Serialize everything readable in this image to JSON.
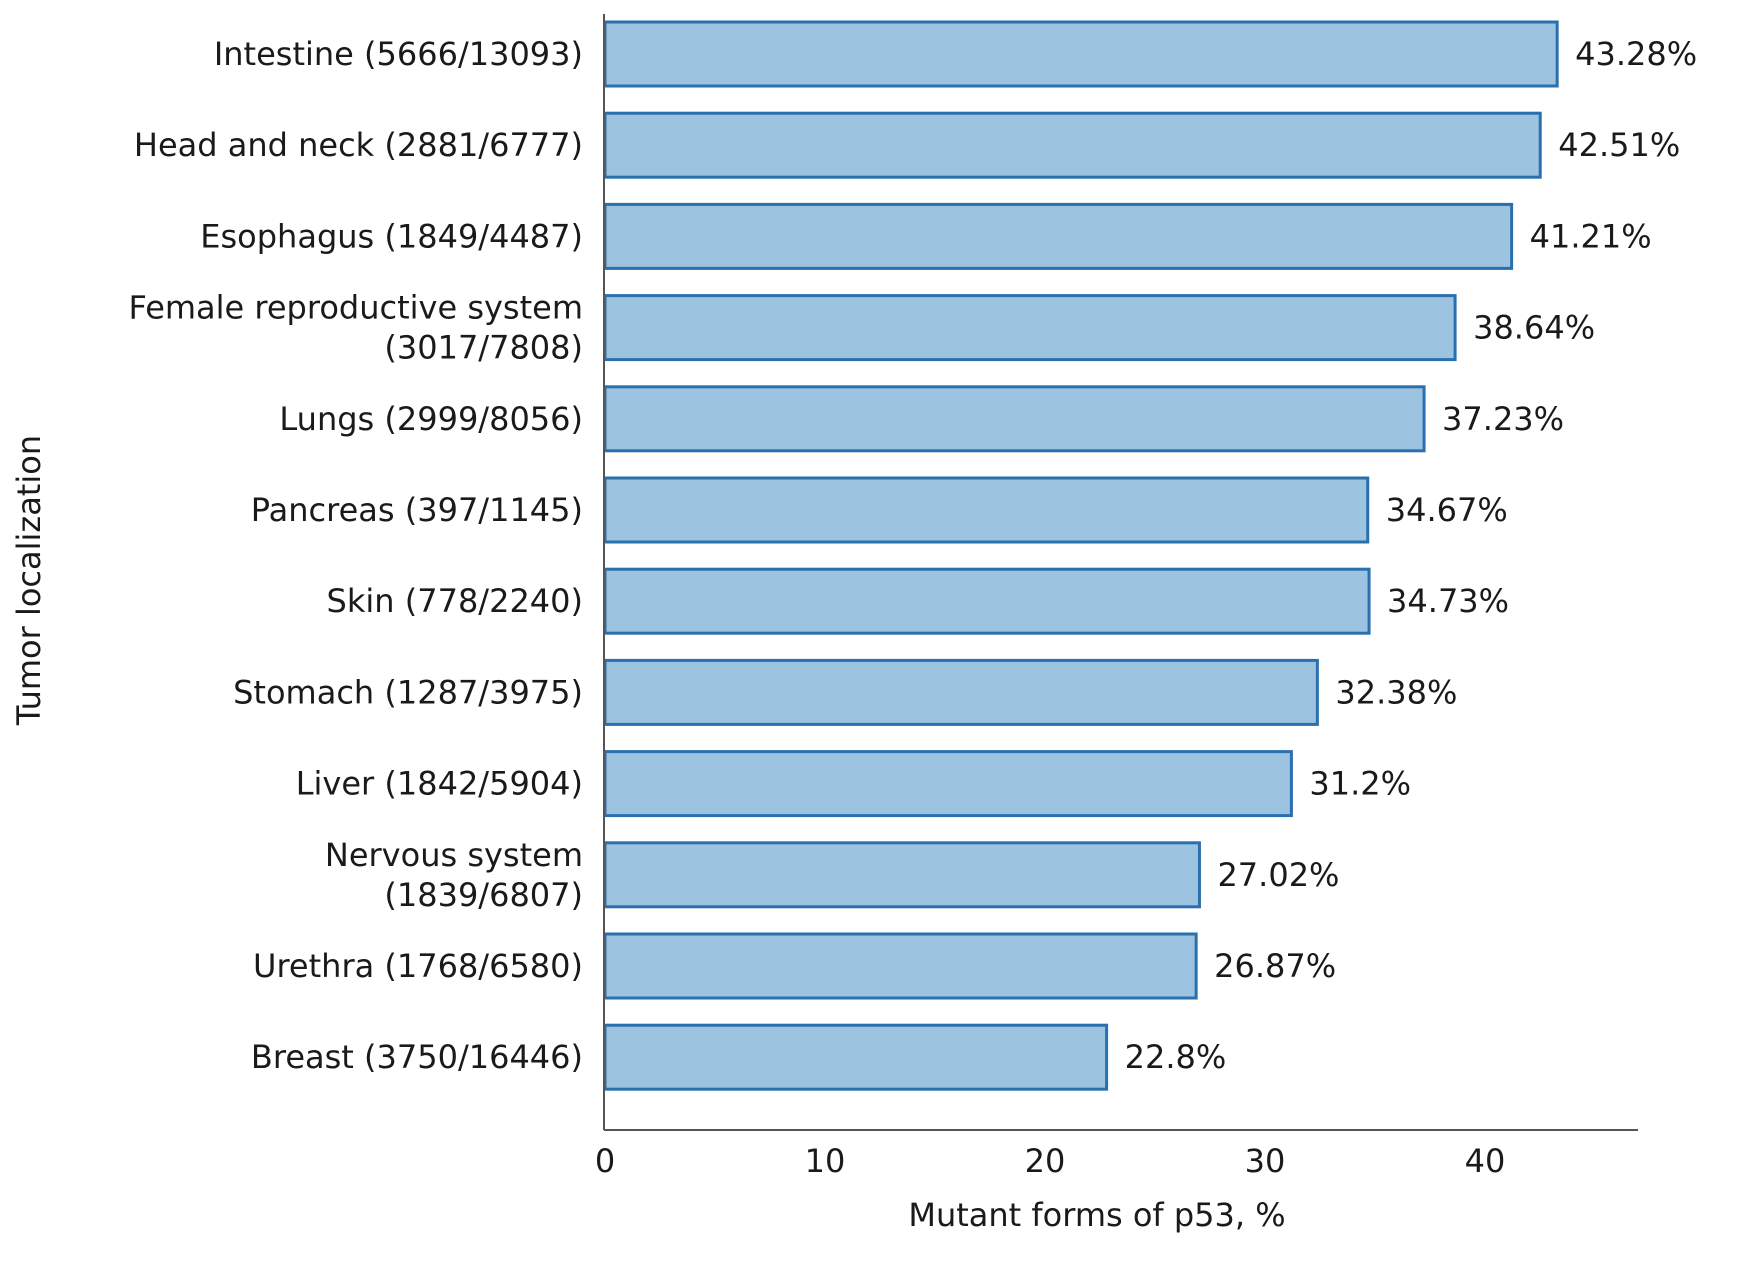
{
  "chart_data": {
    "type": "bar",
    "orientation": "horizontal",
    "categories": [
      [
        "Intestine (5666/13093)"
      ],
      [
        "Head and neck (2881/6777)"
      ],
      [
        "Esophagus (1849/4487)"
      ],
      [
        "Female reproductive system",
        "(3017/7808)"
      ],
      [
        "Lungs (2999/8056)"
      ],
      [
        "Pancreas (397/1145)"
      ],
      [
        "Skin (778/2240)"
      ],
      [
        "Stomach (1287/3975)"
      ],
      [
        "Liver (1842/5904)"
      ],
      [
        "Nervous system",
        "(1839/6807)"
      ],
      [
        "Urethra (1768/6580)"
      ],
      [
        "Breast (3750/16446)"
      ]
    ],
    "values": [
      43.28,
      42.51,
      41.21,
      38.64,
      37.23,
      34.67,
      34.73,
      32.38,
      31.2,
      27.02,
      26.87,
      22.8
    ],
    "value_labels": [
      "43.28%",
      "42.51%",
      "41.21%",
      "38.64%",
      "37.23%",
      "34.67%",
      "34.73%",
      "32.38%",
      "31.2%",
      "27.02%",
      "26.87%",
      "22.8%"
    ],
    "xlabel": "Mutant forms of p53, %",
    "ylabel": "Tumor localization",
    "xlim": [
      0,
      45
    ],
    "xticks": [
      0,
      10,
      20,
      30,
      40
    ],
    "grid": false,
    "colors": {
      "bar_fill": "#9cc3e0",
      "bar_stroke": "#2a6fae"
    }
  }
}
